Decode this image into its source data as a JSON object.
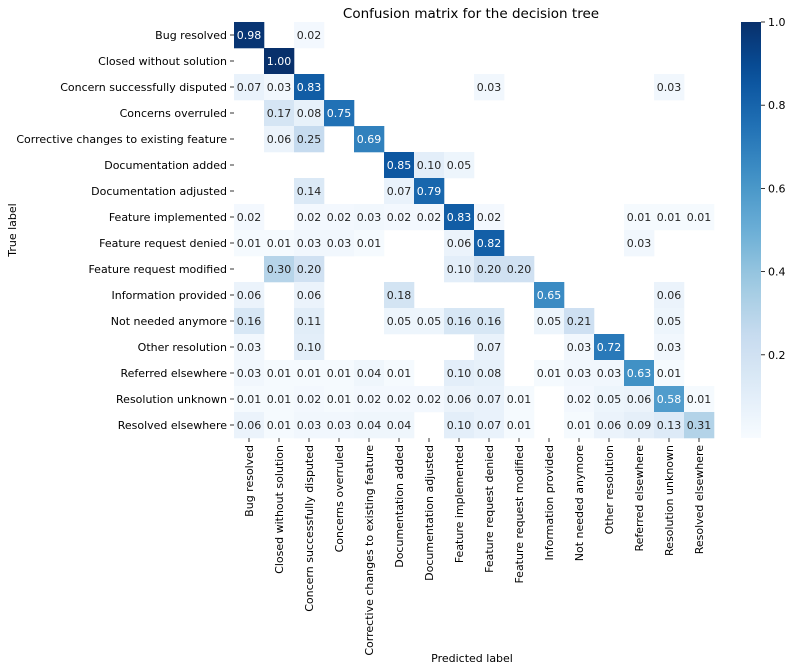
{
  "chart_data": {
    "type": "heatmap",
    "title": "Confusion matrix for the decision tree",
    "xlabel": "Predicted label",
    "ylabel": "True label",
    "labels": [
      "Bug resolved",
      "Closed without solution",
      "Concern successfully disputed",
      "Concerns overruled",
      "Corrective changes to existing feature",
      "Documentation added",
      "Documentation adjusted",
      "Feature implemented",
      "Feature request denied",
      "Feature request modified",
      "Information provided",
      "Not needed anymore",
      "Other resolution",
      "Referred elsewhere",
      "Resolution unknown",
      "Resolved elsewhere"
    ],
    "matrix": [
      [
        0.98,
        null,
        0.02,
        null,
        null,
        null,
        null,
        null,
        null,
        null,
        null,
        null,
        null,
        null,
        null,
        null
      ],
      [
        null,
        1.0,
        null,
        null,
        null,
        null,
        null,
        null,
        null,
        null,
        null,
        null,
        null,
        null,
        null,
        null
      ],
      [
        0.07,
        0.03,
        0.83,
        null,
        null,
        null,
        null,
        null,
        0.03,
        null,
        null,
        null,
        null,
        null,
        0.03,
        null
      ],
      [
        null,
        0.17,
        0.08,
        0.75,
        null,
        null,
        null,
        null,
        null,
        null,
        null,
        null,
        null,
        null,
        null,
        null
      ],
      [
        null,
        0.06,
        0.25,
        null,
        0.69,
        null,
        null,
        null,
        null,
        null,
        null,
        null,
        null,
        null,
        null,
        null
      ],
      [
        null,
        null,
        null,
        null,
        null,
        0.85,
        0.1,
        0.05,
        null,
        null,
        null,
        null,
        null,
        null,
        null,
        null
      ],
      [
        null,
        null,
        0.14,
        null,
        null,
        0.07,
        0.79,
        null,
        null,
        null,
        null,
        null,
        null,
        null,
        null,
        null
      ],
      [
        0.02,
        null,
        0.02,
        0.02,
        0.03,
        0.02,
        0.02,
        0.83,
        0.02,
        null,
        null,
        null,
        null,
        0.01,
        0.01,
        0.01
      ],
      [
        0.01,
        0.01,
        0.03,
        0.03,
        0.01,
        null,
        null,
        0.06,
        0.82,
        null,
        null,
        null,
        null,
        0.03,
        null,
        null
      ],
      [
        null,
        0.3,
        0.2,
        null,
        null,
        null,
        null,
        0.1,
        0.2,
        0.2,
        null,
        null,
        null,
        null,
        null,
        null
      ],
      [
        0.06,
        null,
        0.06,
        null,
        null,
        0.18,
        null,
        null,
        null,
        null,
        0.65,
        null,
        null,
        null,
        0.06,
        null
      ],
      [
        0.16,
        null,
        0.11,
        null,
        null,
        0.05,
        0.05,
        0.16,
        0.16,
        null,
        0.05,
        0.21,
        null,
        null,
        0.05,
        null
      ],
      [
        0.03,
        null,
        0.1,
        null,
        null,
        null,
        null,
        null,
        0.07,
        null,
        null,
        0.03,
        0.72,
        null,
        0.03,
        null
      ],
      [
        0.03,
        0.01,
        0.01,
        0.01,
        0.04,
        0.01,
        null,
        0.1,
        0.08,
        null,
        0.01,
        0.03,
        0.03,
        0.63,
        0.01,
        null
      ],
      [
        0.01,
        0.01,
        0.02,
        0.01,
        0.02,
        0.02,
        0.02,
        0.06,
        0.07,
        0.01,
        null,
        0.02,
        0.05,
        0.06,
        0.58,
        0.01
      ],
      [
        0.06,
        0.01,
        0.03,
        0.03,
        0.04,
        0.04,
        null,
        0.1,
        0.07,
        0.01,
        null,
        0.01,
        0.06,
        0.09,
        0.13,
        0.31
      ]
    ],
    "value_range": [
      0,
      1.0
    ],
    "colorbar_ticks": [
      0.2,
      0.4,
      0.6,
      0.8,
      1.0
    ],
    "colorbar_tick_labels": [
      "0.2",
      "0.4",
      "0.6",
      "0.8",
      "1.0"
    ],
    "colormap": "Blues",
    "colormap_stops": [
      "#f7fbff",
      "#deebf7",
      "#c6dbef",
      "#9ecae1",
      "#6baed6",
      "#4292c6",
      "#2171b5",
      "#08519c",
      "#08306b"
    ],
    "text_color_light": "#ffffff",
    "text_color_dark": "#262626"
  }
}
